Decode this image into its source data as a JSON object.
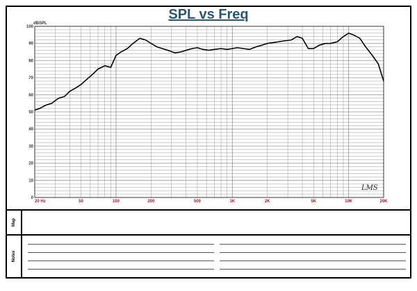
{
  "chart_data": {
    "type": "line",
    "title": "SPL vs Freq",
    "ylabel": "dBSPL",
    "xlabel": "",
    "xscale": "log",
    "xlim": [
      20,
      20000
    ],
    "ylim": [
      0,
      100
    ],
    "grid": true,
    "y_ticks": [
      0,
      10,
      20,
      30,
      40,
      50,
      60,
      70,
      80,
      90,
      100
    ],
    "x_tick_labels": [
      {
        "value": 20,
        "label": "20  Hz"
      },
      {
        "value": 50,
        "label": "50"
      },
      {
        "value": 100,
        "label": "100"
      },
      {
        "value": 200,
        "label": "200"
      },
      {
        "value": 500,
        "label": "500"
      },
      {
        "value": 1000,
        "label": "1K"
      },
      {
        "value": 2000,
        "label": "2K"
      },
      {
        "value": 5000,
        "label": "5K"
      },
      {
        "value": 10000,
        "label": "10K"
      },
      {
        "value": 20000,
        "label": "20K"
      }
    ],
    "series": [
      {
        "x": [
          20,
          22,
          25,
          28,
          32,
          36,
          40,
          45,
          50,
          56,
          63,
          70,
          80,
          90,
          100,
          110,
          125,
          140,
          160,
          180,
          200,
          225,
          250,
          280,
          320,
          360,
          400,
          450,
          500,
          560,
          630,
          700,
          800,
          900,
          1000,
          1100,
          1250,
          1400,
          1600,
          1800,
          2000,
          2250,
          2500,
          2800,
          3200,
          3600,
          4000,
          4500,
          5000,
          5600,
          6300,
          7000,
          8000,
          9000,
          10000,
          11000,
          12500,
          14000,
          16000,
          18000,
          20000
        ],
        "y": [
          51,
          52,
          54,
          55,
          58,
          59,
          62,
          64,
          66,
          69,
          72,
          75,
          77,
          76,
          83,
          85,
          87,
          90,
          93,
          92,
          90,
          88,
          87,
          86,
          84.5,
          85,
          86,
          87,
          87.5,
          86.5,
          86,
          86.5,
          87,
          86.5,
          87,
          87.5,
          87,
          86.5,
          88,
          89,
          90,
          90.5,
          91,
          91.5,
          92,
          94,
          93,
          87,
          87,
          89,
          90,
          90,
          91,
          94,
          96,
          95,
          93,
          88,
          83,
          78,
          68
        ]
      }
    ]
  },
  "header": {
    "title": "SPL vs Freq"
  },
  "watermark": "LMS",
  "lower": {
    "map_label": "Map",
    "notes_label": "Notes"
  },
  "colors": {
    "title": "#2a5673",
    "x_tick_label": "#8a1a2a",
    "grid": "#9a9a9a",
    "curve": "#000000"
  }
}
